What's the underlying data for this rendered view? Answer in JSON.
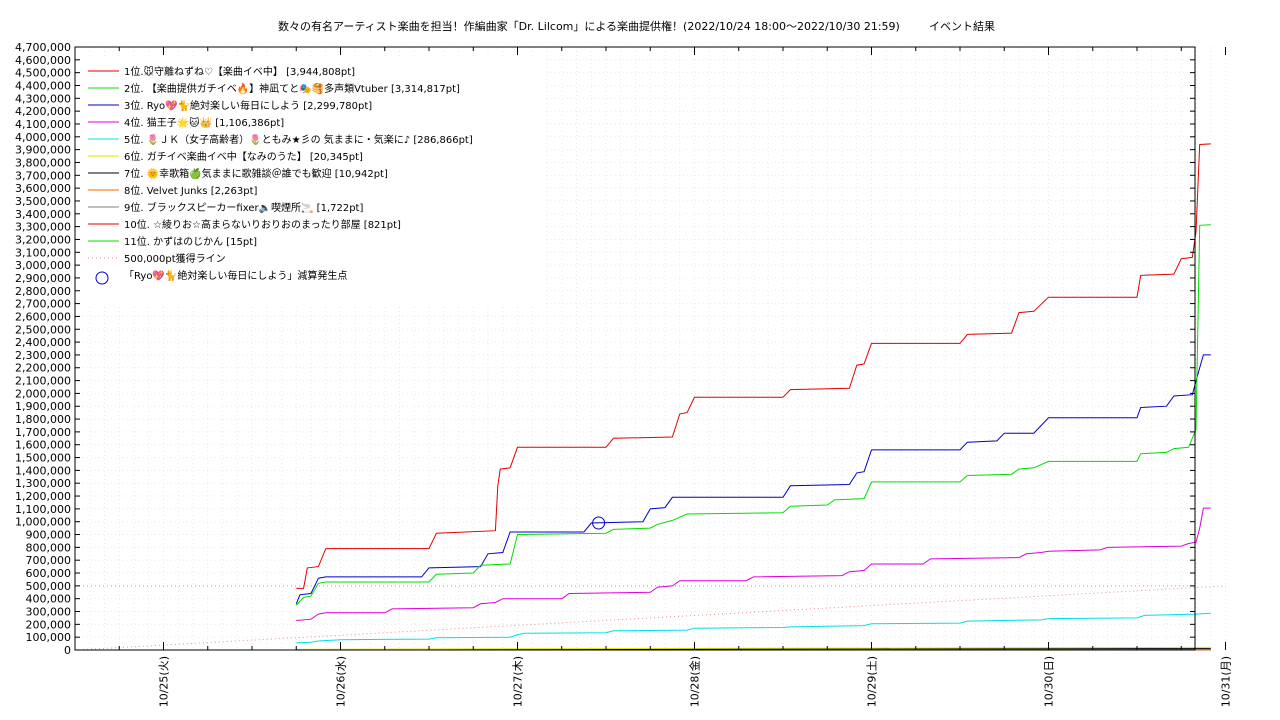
{
  "chart_data": {
    "type": "line",
    "title": "数々の有名アーティスト楽曲を担当！作編曲家「Dr. Lilcom」による楽曲提供権！(2022/10/24 18:00～2022/10/30 21:59)",
    "subtitle": "イベント結果",
    "xlabel": "",
    "ylabel": "",
    "x_tick_labels": [
      "10/25(火)",
      "10/26(水)",
      "10/27(木)",
      "10/28(金)",
      "10/29(土)",
      "10/30(日)",
      "10/31(月)"
    ],
    "x_range": [
      "10/24 12:00",
      "10/31 00:00"
    ],
    "ylim": [
      0,
      4700000
    ],
    "y_tick_step": 100000,
    "grid": true,
    "legend_position": "top-left",
    "series": [
      {
        "name": "1位.🐭守離ねずね♡【楽曲イベ中】 [3,944,808pt]",
        "color": "#e00000",
        "points": [
          [
            "10/25 18:00",
            480000
          ],
          [
            "10/25 19:00",
            480000
          ],
          [
            "10/25 19:30",
            640000
          ],
          [
            "10/25 21:00",
            650000
          ],
          [
            "10/25 22:00",
            790000
          ],
          [
            "10/26 12:00",
            790000
          ],
          [
            "10/26 13:00",
            910000
          ],
          [
            "10/26 21:00",
            930000
          ],
          [
            "10/26 21:20",
            1280000
          ],
          [
            "10/26 21:40",
            1410000
          ],
          [
            "10/26 23:00",
            1420000
          ],
          [
            "10/27 00:00",
            1580000
          ],
          [
            "10/27 12:00",
            1580000
          ],
          [
            "10/27 13:00",
            1650000
          ],
          [
            "10/27 21:00",
            1660000
          ],
          [
            "10/27 22:00",
            1840000
          ],
          [
            "10/27 23:00",
            1850000
          ],
          [
            "10/28 00:00",
            1970000
          ],
          [
            "10/28 12:00",
            1970000
          ],
          [
            "10/28 13:00",
            2030000
          ],
          [
            "10/28 21:00",
            2040000
          ],
          [
            "10/28 22:00",
            2220000
          ],
          [
            "10/28 23:00",
            2230000
          ],
          [
            "10/29 00:00",
            2390000
          ],
          [
            "10/29 12:00",
            2390000
          ],
          [
            "10/29 13:00",
            2460000
          ],
          [
            "10/29 19:00",
            2470000
          ],
          [
            "10/29 20:00",
            2630000
          ],
          [
            "10/29 22:00",
            2640000
          ],
          [
            "10/30 00:00",
            2750000
          ],
          [
            "10/30 12:00",
            2750000
          ],
          [
            "10/30 12:30",
            2920000
          ],
          [
            "10/30 17:00",
            2930000
          ],
          [
            "10/30 18:00",
            3050000
          ],
          [
            "10/30 19:30",
            3060000
          ],
          [
            "10/30 20:00",
            3260000
          ],
          [
            "10/30 20:30",
            3940000
          ],
          [
            "10/30 22:00",
            3944808
          ]
        ]
      },
      {
        "name": "2位. 【楽曲提供ガチイベ🔥】神凪てと🎭🥞多声類Vtuber [3,314,817pt]",
        "color": "#00dd00",
        "points": [
          [
            "10/25 18:00",
            350000
          ],
          [
            "10/25 19:00",
            410000
          ],
          [
            "10/25 20:00",
            420000
          ],
          [
            "10/25 21:00",
            520000
          ],
          [
            "10/25 22:00",
            530000
          ],
          [
            "10/26 12:00",
            530000
          ],
          [
            "10/26 13:00",
            590000
          ],
          [
            "10/26 18:00",
            600000
          ],
          [
            "10/26 19:00",
            660000
          ],
          [
            "10/26 23:00",
            670000
          ],
          [
            "10/27 00:00",
            900000
          ],
          [
            "10/27 12:00",
            910000
          ],
          [
            "10/27 13:00",
            940000
          ],
          [
            "10/27 18:00",
            950000
          ],
          [
            "10/27 19:00",
            980000
          ],
          [
            "10/27 21:00",
            1010000
          ],
          [
            "10/27 23:00",
            1060000
          ],
          [
            "10/28 12:00",
            1070000
          ],
          [
            "10/28 13:00",
            1120000
          ],
          [
            "10/28 18:00",
            1130000
          ],
          [
            "10/28 19:00",
            1170000
          ],
          [
            "10/28 23:00",
            1180000
          ],
          [
            "10/29 00:00",
            1310000
          ],
          [
            "10/29 12:00",
            1310000
          ],
          [
            "10/29 13:00",
            1360000
          ],
          [
            "10/29 19:00",
            1370000
          ],
          [
            "10/29 20:00",
            1410000
          ],
          [
            "10/29 22:00",
            1420000
          ],
          [
            "10/30 00:00",
            1470000
          ],
          [
            "10/30 12:00",
            1470000
          ],
          [
            "10/30 12:30",
            1530000
          ],
          [
            "10/30 16:00",
            1540000
          ],
          [
            "10/30 17:00",
            1570000
          ],
          [
            "10/30 19:00",
            1580000
          ],
          [
            "10/30 20:00",
            1720000
          ],
          [
            "10/30 20:30",
            3310000
          ],
          [
            "10/30 22:00",
            3314817
          ]
        ]
      },
      {
        "name": "3位. Ryo💖🐈絶対楽しい毎日にしよう [2,299,780pt]",
        "color": "#0000cc",
        "points": [
          [
            "10/25 18:00",
            360000
          ],
          [
            "10/25 18:30",
            430000
          ],
          [
            "10/25 20:00",
            440000
          ],
          [
            "10/25 21:00",
            560000
          ],
          [
            "10/25 22:00",
            570000
          ],
          [
            "10/26 11:00",
            570000
          ],
          [
            "10/26 12:00",
            640000
          ],
          [
            "10/26 19:00",
            650000
          ],
          [
            "10/26 20:00",
            750000
          ],
          [
            "10/26 22:00",
            760000
          ],
          [
            "10/26 23:00",
            920000
          ],
          [
            "10/27 09:00",
            920000
          ],
          [
            "10/27 10:00",
            990000
          ],
          [
            "10/27 17:00",
            1000000
          ],
          [
            "10/27 18:00",
            1100000
          ],
          [
            "10/27 20:00",
            1110000
          ],
          [
            "10/27 21:00",
            1190000
          ],
          [
            "10/28 12:00",
            1190000
          ],
          [
            "10/28 13:00",
            1280000
          ],
          [
            "10/28 21:00",
            1290000
          ],
          [
            "10/28 22:00",
            1380000
          ],
          [
            "10/28 23:00",
            1390000
          ],
          [
            "10/29 00:00",
            1560000
          ],
          [
            "10/29 12:00",
            1560000
          ],
          [
            "10/29 13:00",
            1620000
          ],
          [
            "10/29 17:00",
            1630000
          ],
          [
            "10/29 18:00",
            1690000
          ],
          [
            "10/29 22:00",
            1690000
          ],
          [
            "10/30 00:00",
            1810000
          ],
          [
            "10/30 12:00",
            1810000
          ],
          [
            "10/30 12:30",
            1890000
          ],
          [
            "10/30 16:00",
            1900000
          ],
          [
            "10/30 17:00",
            1980000
          ],
          [
            "10/30 19:30",
            1990000
          ],
          [
            "10/30 20:30",
            2200000
          ],
          [
            "10/30 21:00",
            2299780
          ],
          [
            "10/30 22:00",
            2299780
          ]
        ]
      },
      {
        "name": "4位. 猫王子🌟🐱👑 [1,106,386pt]",
        "color": "#dd00dd",
        "points": [
          [
            "10/25 18:00",
            230000
          ],
          [
            "10/25 20:00",
            240000
          ],
          [
            "10/25 21:00",
            280000
          ],
          [
            "10/25 22:00",
            290000
          ],
          [
            "10/26 06:00",
            290000
          ],
          [
            "10/26 07:00",
            320000
          ],
          [
            "10/26 18:00",
            330000
          ],
          [
            "10/26 19:00",
            360000
          ],
          [
            "10/26 21:00",
            370000
          ],
          [
            "10/26 22:00",
            400000
          ],
          [
            "10/27 06:00",
            400000
          ],
          [
            "10/27 07:00",
            440000
          ],
          [
            "10/27 18:00",
            450000
          ],
          [
            "10/27 19:00",
            490000
          ],
          [
            "10/27 21:00",
            500000
          ],
          [
            "10/27 22:00",
            540000
          ],
          [
            "10/28 07:00",
            540000
          ],
          [
            "10/28 08:00",
            570000
          ],
          [
            "10/28 20:00",
            580000
          ],
          [
            "10/28 21:00",
            610000
          ],
          [
            "10/28 23:00",
            620000
          ],
          [
            "10/29 00:00",
            670000
          ],
          [
            "10/29 07:00",
            670000
          ],
          [
            "10/29 08:00",
            710000
          ],
          [
            "10/29 20:00",
            720000
          ],
          [
            "10/29 21:00",
            750000
          ],
          [
            "10/29 23:00",
            760000
          ],
          [
            "10/30 00:00",
            770000
          ],
          [
            "10/30 07:00",
            780000
          ],
          [
            "10/30 08:00",
            800000
          ],
          [
            "10/30 18:00",
            810000
          ],
          [
            "10/30 19:00",
            830000
          ],
          [
            "10/30 20:00",
            840000
          ],
          [
            "10/30 20:30",
            950000
          ],
          [
            "10/30 21:00",
            1106386
          ],
          [
            "10/30 22:00",
            1106386
          ]
        ]
      },
      {
        "name": "5位. 🌷ＪＫ（女子高齢者）🌷ともみ★彡の 気ままに・気楽に♪ [286,866pt]",
        "color": "#00e0e0",
        "points": [
          [
            "10/25 18:00",
            55000
          ],
          [
            "10/25 20:00",
            60000
          ],
          [
            "10/25 21:00",
            70000
          ],
          [
            "10/26 00:00",
            80000
          ],
          [
            "10/26 12:00",
            85000
          ],
          [
            "10/26 13:00",
            95000
          ],
          [
            "10/26 23:00",
            100000
          ],
          [
            "10/27 00:00",
            120000
          ],
          [
            "10/27 01:00",
            130000
          ],
          [
            "10/27 12:00",
            135000
          ],
          [
            "10/27 13:00",
            150000
          ],
          [
            "10/27 23:00",
            155000
          ],
          [
            "10/28 00:00",
            170000
          ],
          [
            "10/28 12:00",
            175000
          ],
          [
            "10/28 13:00",
            180000
          ],
          [
            "10/28 23:00",
            190000
          ],
          [
            "10/29 00:00",
            205000
          ],
          [
            "10/29 12:00",
            210000
          ],
          [
            "10/29 13:00",
            225000
          ],
          [
            "10/29 23:00",
            235000
          ],
          [
            "10/30 00:00",
            245000
          ],
          [
            "10/30 12:00",
            250000
          ],
          [
            "10/30 13:00",
            270000
          ],
          [
            "10/30 20:00",
            280000
          ],
          [
            "10/30 22:00",
            286866
          ]
        ]
      },
      {
        "name": "6位. ガチイベ楽曲イベ中【なみのうた】 [20,345pt]",
        "color": "#e6e600",
        "points": [
          [
            "10/25 18:00",
            5000
          ],
          [
            "10/27 00:00",
            10000
          ],
          [
            "10/29 00:00",
            15000
          ],
          [
            "10/30 22:00",
            20345
          ]
        ]
      },
      {
        "name": "7位. 🌞幸歌箱🍏気ままに歌雑談＠誰でも歓迎 [10,942pt]",
        "color": "#000000",
        "points": [
          [
            "10/25 18:00",
            3000
          ],
          [
            "10/27 00:00",
            6000
          ],
          [
            "10/29 00:00",
            9000
          ],
          [
            "10/30 22:00",
            10942
          ]
        ]
      },
      {
        "name": "8位. Velvet Junks [2,263pt]",
        "color": "#ff6600",
        "points": [
          [
            "10/25 18:00",
            500
          ],
          [
            "10/30 22:00",
            2263
          ]
        ]
      },
      {
        "name": "9位. ブラックスピーカーfixer🔈喫煙所🚬 [1,722pt]",
        "color": "#808080",
        "points": [
          [
            "10/25 18:00",
            400
          ],
          [
            "10/30 22:00",
            1722
          ]
        ]
      },
      {
        "name": "10位. ☆綾りお☆高まらないりおりおのまったり部屋 [821pt]",
        "color": "#e00000",
        "points": [
          [
            "10/25 18:00",
            200
          ],
          [
            "10/30 22:00",
            821
          ]
        ]
      },
      {
        "name": "11位. かずはのじかん [15pt]",
        "color": "#00dd00",
        "points": [
          [
            "10/25 18:00",
            0
          ],
          [
            "10/30 22:00",
            15
          ]
        ]
      }
    ],
    "reference_lines": [
      {
        "name": "500,000pt獲得ライン",
        "color": "#e09090",
        "style": "dotted",
        "points": [
          [
            "10/24 12:00",
            0
          ],
          [
            "10/31 00:00",
            500000
          ]
        ],
        "horizontal_value": 500000
      }
    ],
    "markers": [
      {
        "name": "「Ryo💖🐈絶対楽しい毎日にしよう」減算発生点",
        "color": "#0000cc",
        "shape": "circle",
        "x": "10/27 11:00",
        "y": 990000
      }
    ]
  }
}
